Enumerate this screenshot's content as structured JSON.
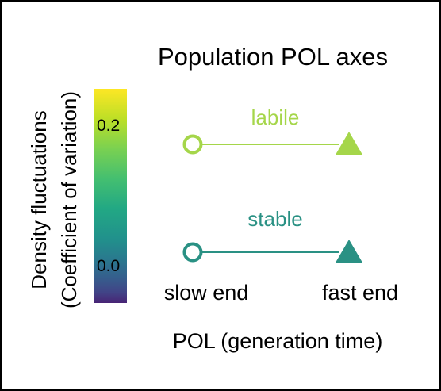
{
  "title": "Population POL axes",
  "colorbar": {
    "label_line1": "Density fluctuations",
    "label_line2": "(Coefficient of variation)",
    "tick_high": "0.2",
    "tick_low": "0.0",
    "colormap": [
      "#fde725",
      "#a0da39",
      "#4ac16d",
      "#1fa187",
      "#277f8e",
      "#365c8d",
      "#46327e",
      "#440154"
    ]
  },
  "axes": [
    {
      "label": "labile",
      "color": "#a5d64a",
      "start_marker": "open-circle",
      "end_marker": "filled-triangle"
    },
    {
      "label": "stable",
      "color": "#2a9184",
      "start_marker": "open-circle",
      "end_marker": "filled-triangle"
    }
  ],
  "end_labels": {
    "slow": "slow end",
    "fast": "fast end"
  },
  "xlabel": "POL (generation time)"
}
